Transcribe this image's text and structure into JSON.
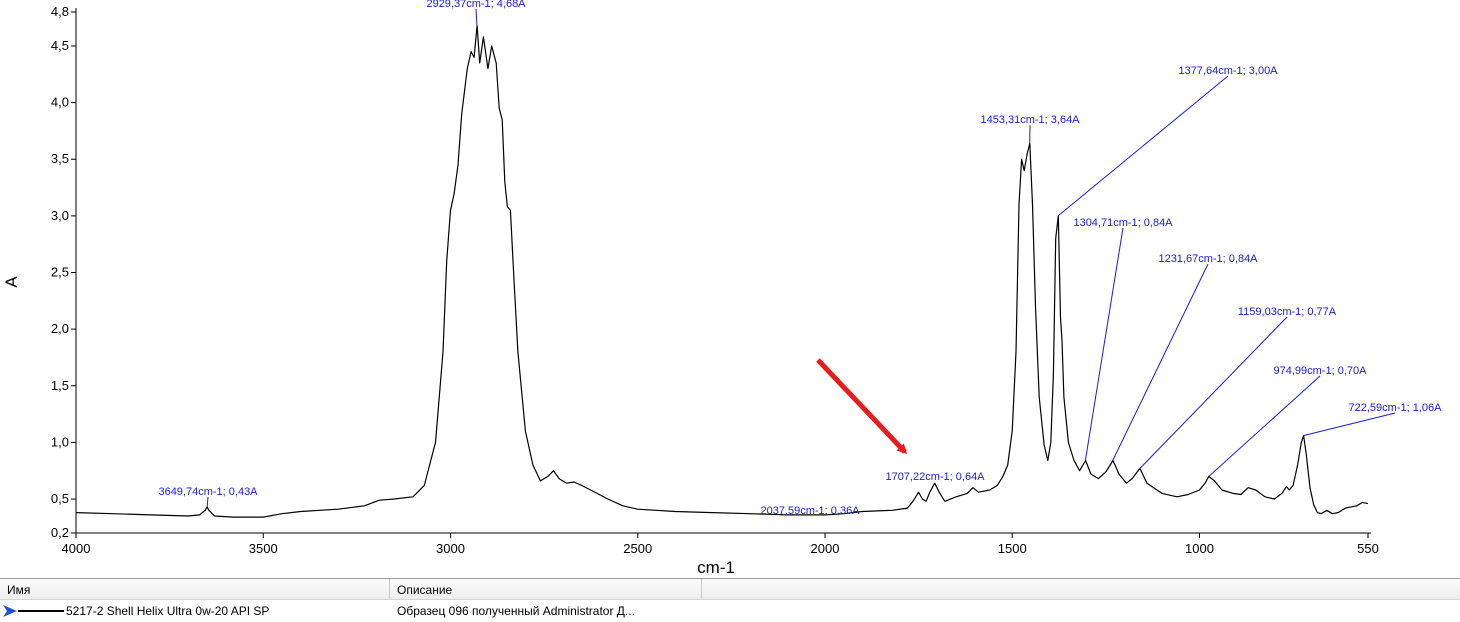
{
  "chart_data": {
    "type": "line",
    "xlabel": "cm-1",
    "ylabel": "A",
    "xlim": [
      4000,
      550
    ],
    "ylim": [
      0.2,
      4.8
    ],
    "x_ticks": [
      4000,
      3500,
      3000,
      2500,
      2000,
      1500,
      1000,
      550
    ],
    "x_tick_labels": [
      "4000",
      "3500",
      "3000",
      "2500",
      "2000",
      "1500",
      "1000",
      "550"
    ],
    "y_ticks": [
      0.2,
      0.5,
      1.0,
      1.5,
      2.0,
      2.5,
      3.0,
      3.5,
      4.0,
      4.5,
      4.8
    ],
    "y_tick_labels": [
      "0,2",
      "0,5",
      "1,0",
      "1,5",
      "2,0",
      "2,5",
      "3,0",
      "3,5",
      "4,0",
      "4,5",
      "4,8"
    ],
    "grid": false,
    "series": [
      {
        "name": "5217-2 Shell Helix Ultra 0w-20 API SP",
        "color": "#000000",
        "points": [
          [
            4000,
            0.38
          ],
          [
            3900,
            0.37
          ],
          [
            3800,
            0.36
          ],
          [
            3700,
            0.35
          ],
          [
            3670,
            0.36
          ],
          [
            3655,
            0.4
          ],
          [
            3650,
            0.43
          ],
          [
            3645,
            0.4
          ],
          [
            3630,
            0.35
          ],
          [
            3580,
            0.34
          ],
          [
            3500,
            0.34
          ],
          [
            3450,
            0.37
          ],
          [
            3400,
            0.39
          ],
          [
            3300,
            0.41
          ],
          [
            3230,
            0.44
          ],
          [
            3190,
            0.49
          ],
          [
            3150,
            0.5
          ],
          [
            3100,
            0.52
          ],
          [
            3070,
            0.62
          ],
          [
            3040,
            1.0
          ],
          [
            3020,
            1.8
          ],
          [
            3010,
            2.6
          ],
          [
            3000,
            3.05
          ],
          [
            2990,
            3.2
          ],
          [
            2980,
            3.45
          ],
          [
            2970,
            3.9
          ],
          [
            2955,
            4.3
          ],
          [
            2945,
            4.45
          ],
          [
            2937,
            4.4
          ],
          [
            2929,
            4.68
          ],
          [
            2922,
            4.35
          ],
          [
            2912,
            4.58
          ],
          [
            2900,
            4.3
          ],
          [
            2890,
            4.5
          ],
          [
            2878,
            4.35
          ],
          [
            2870,
            3.95
          ],
          [
            2862,
            3.85
          ],
          [
            2855,
            3.3
          ],
          [
            2848,
            3.08
          ],
          [
            2840,
            3.05
          ],
          [
            2830,
            2.4
          ],
          [
            2820,
            1.8
          ],
          [
            2800,
            1.1
          ],
          [
            2780,
            0.8
          ],
          [
            2760,
            0.66
          ],
          [
            2740,
            0.7
          ],
          [
            2725,
            0.75
          ],
          [
            2710,
            0.68
          ],
          [
            2690,
            0.64
          ],
          [
            2670,
            0.65
          ],
          [
            2650,
            0.62
          ],
          [
            2620,
            0.57
          ],
          [
            2580,
            0.5
          ],
          [
            2540,
            0.44
          ],
          [
            2500,
            0.41
          ],
          [
            2400,
            0.39
          ],
          [
            2300,
            0.38
          ],
          [
            2200,
            0.37
          ],
          [
            2100,
            0.36
          ],
          [
            2037,
            0.36
          ],
          [
            2000,
            0.36
          ],
          [
            1950,
            0.37
          ],
          [
            1900,
            0.39
          ],
          [
            1820,
            0.4
          ],
          [
            1780,
            0.42
          ],
          [
            1765,
            0.48
          ],
          [
            1750,
            0.56
          ],
          [
            1740,
            0.5
          ],
          [
            1730,
            0.48
          ],
          [
            1720,
            0.56
          ],
          [
            1707,
            0.64
          ],
          [
            1695,
            0.56
          ],
          [
            1680,
            0.48
          ],
          [
            1650,
            0.52
          ],
          [
            1620,
            0.55
          ],
          [
            1605,
            0.6
          ],
          [
            1590,
            0.56
          ],
          [
            1560,
            0.58
          ],
          [
            1540,
            0.62
          ],
          [
            1525,
            0.7
          ],
          [
            1512,
            0.8
          ],
          [
            1500,
            1.1
          ],
          [
            1490,
            1.8
          ],
          [
            1482,
            3.1
          ],
          [
            1475,
            3.5
          ],
          [
            1468,
            3.4
          ],
          [
            1460,
            3.55
          ],
          [
            1453,
            3.64
          ],
          [
            1446,
            3.1
          ],
          [
            1438,
            2.2
          ],
          [
            1428,
            1.4
          ],
          [
            1415,
            0.98
          ],
          [
            1405,
            0.84
          ],
          [
            1397,
            1.0
          ],
          [
            1390,
            1.6
          ],
          [
            1384,
            2.8
          ],
          [
            1377,
            3.0
          ],
          [
            1371,
            2.1
          ],
          [
            1367,
            1.9
          ],
          [
            1362,
            1.4
          ],
          [
            1350,
            1.0
          ],
          [
            1335,
            0.84
          ],
          [
            1320,
            0.75
          ],
          [
            1304,
            0.84
          ],
          [
            1290,
            0.72
          ],
          [
            1270,
            0.68
          ],
          [
            1250,
            0.74
          ],
          [
            1231,
            0.84
          ],
          [
            1215,
            0.72
          ],
          [
            1195,
            0.64
          ],
          [
            1180,
            0.68
          ],
          [
            1159,
            0.77
          ],
          [
            1140,
            0.64
          ],
          [
            1100,
            0.55
          ],
          [
            1060,
            0.52
          ],
          [
            1030,
            0.54
          ],
          [
            1000,
            0.58
          ],
          [
            985,
            0.64
          ],
          [
            975,
            0.7
          ],
          [
            960,
            0.66
          ],
          [
            940,
            0.58
          ],
          [
            910,
            0.55
          ],
          [
            890,
            0.54
          ],
          [
            870,
            0.6
          ],
          [
            850,
            0.58
          ],
          [
            825,
            0.52
          ],
          [
            800,
            0.5
          ],
          [
            780,
            0.55
          ],
          [
            768,
            0.61
          ],
          [
            760,
            0.58
          ],
          [
            750,
            0.62
          ],
          [
            738,
            0.8
          ],
          [
            728,
            1.0
          ],
          [
            722,
            1.06
          ],
          [
            715,
            0.9
          ],
          [
            705,
            0.6
          ],
          [
            695,
            0.45
          ],
          [
            685,
            0.38
          ],
          [
            675,
            0.37
          ],
          [
            660,
            0.4
          ],
          [
            645,
            0.37
          ],
          [
            630,
            0.38
          ],
          [
            610,
            0.42
          ],
          [
            595,
            0.43
          ],
          [
            580,
            0.44
          ],
          [
            565,
            0.47
          ],
          [
            550,
            0.46
          ]
        ]
      }
    ],
    "annotations": [
      {
        "text": "3649,74cm-1; 0,43A",
        "x": 3649.74,
        "y": 0.43
      },
      {
        "text": "2929,37cm-1; 4,68A",
        "x": 2929.37,
        "y": 4.68
      },
      {
        "text": "2037,59cm-1; 0,36A",
        "x": 2037.59,
        "y": 0.36
      },
      {
        "text": "1707,22cm-1; 0,64A",
        "x": 1707.22,
        "y": 0.64
      },
      {
        "text": "1453,31cm-1; 3,64A",
        "x": 1453.31,
        "y": 3.64
      },
      {
        "text": "1377,64cm-1; 3,00A",
        "x": 1377.64,
        "y": 3.0
      },
      {
        "text": "1304,71cm-1; 0,84A",
        "x": 1304.71,
        "y": 0.84
      },
      {
        "text": "1231,67cm-1; 0,84A",
        "x": 1231.67,
        "y": 0.84
      },
      {
        "text": "1159,03cm-1; 0,77A",
        "x": 1159.03,
        "y": 0.77
      },
      {
        "text": "974,99cm-1; 0,70A",
        "x": 974.99,
        "y": 0.7
      },
      {
        "text": "722,59cm-1; 1,06A",
        "x": 722.59,
        "y": 1.06
      }
    ],
    "colors": {
      "annotation": "#1a1ae6",
      "highlight_arrow": "#e81c1c",
      "line": "#000000"
    }
  },
  "list": {
    "columns": [
      "Имя",
      "Описание"
    ],
    "rows": [
      {
        "name": "5217-2 Shell Helix Ultra 0w-20 API SP",
        "description": "Образец 096 полученный Administrator Д..."
      }
    ]
  }
}
